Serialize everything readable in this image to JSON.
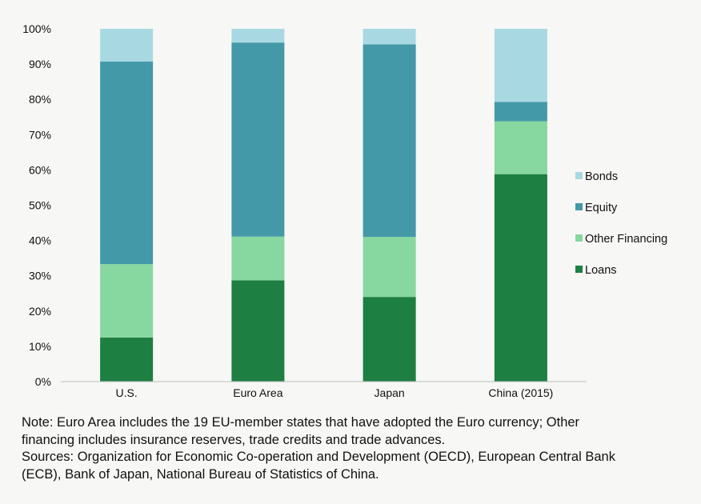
{
  "chart_data": {
    "type": "bar",
    "stacked": true,
    "categories": [
      "U.S.",
      "Euro Area",
      "Japan",
      "China (2015)"
    ],
    "series": [
      {
        "name": "Loans",
        "color": "#1d7f42",
        "values": [
          12.5,
          28.7,
          24.0,
          58.8
        ]
      },
      {
        "name": "Other Financing",
        "color": "#87d7a0",
        "values": [
          20.8,
          12.4,
          17.0,
          15.0
        ]
      },
      {
        "name": "Equity",
        "color": "#4499a8",
        "values": [
          57.4,
          55.0,
          54.6,
          5.5
        ]
      },
      {
        "name": "Bonds",
        "color": "#a8d9e3",
        "values": [
          9.3,
          3.9,
          4.4,
          20.7
        ]
      }
    ],
    "legend_order": [
      "Bonds",
      "Equity",
      "Other Financing",
      "Loans"
    ],
    "y_ticks": [
      "0%",
      "10%",
      "20%",
      "30%",
      "40%",
      "50%",
      "60%",
      "70%",
      "80%",
      "90%",
      "100%"
    ],
    "ylim": [
      0,
      100
    ],
    "legend_position": "right",
    "grid": false
  },
  "footnote": {
    "note_line1": "Note: Euro Area includes the 19 EU-member states that have adopted the Euro currency; Other",
    "note_line2": "financing includes insurance reserves, trade credits and trade advances.",
    "sources_line1": "Sources: Organization for Economic Co-operation and Development (OECD), European Central Bank",
    "sources_line2": "(ECB), Bank of Japan, National Bureau of Statistics of China."
  }
}
